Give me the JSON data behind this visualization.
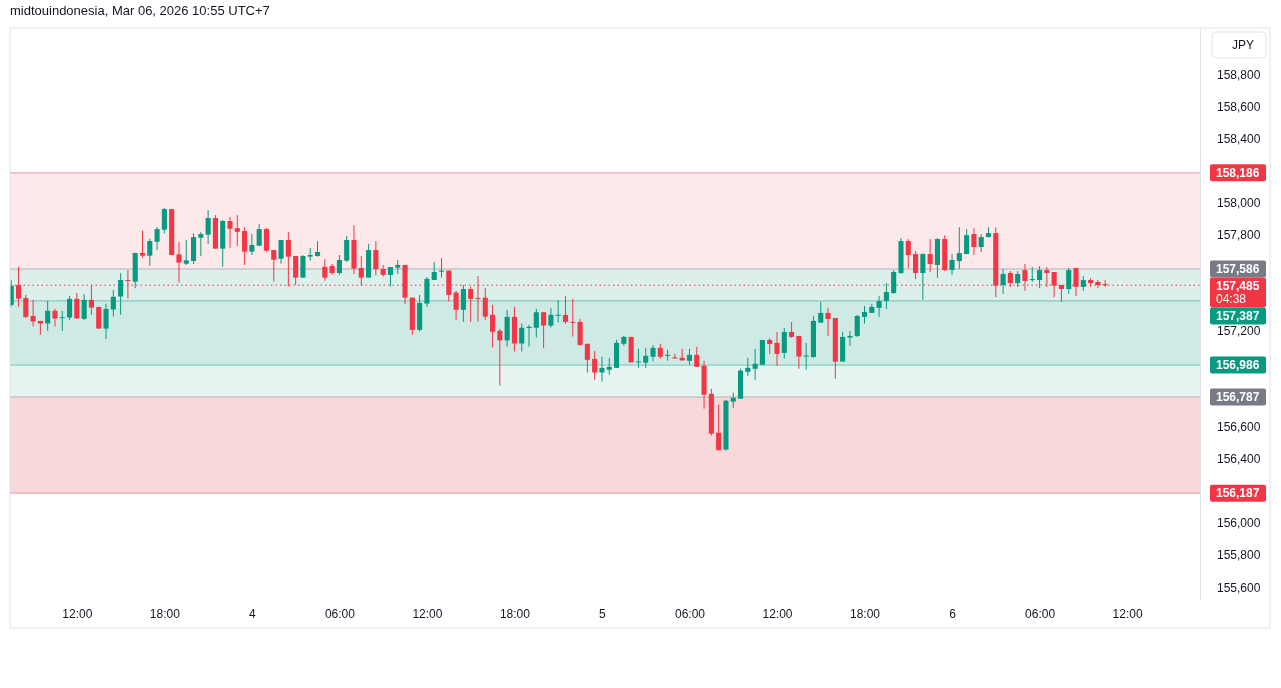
{
  "chart_data": {
    "type": "candlestick",
    "title": "midtouindonesia, Mar 06, 2026 10:55 UTC+7",
    "ylabel": "JPY",
    "annotations": [
      "04:38"
    ],
    "x": [
      "2026-03-03T07:30",
      "2026-03-03T08:00",
      "2026-03-03T08:30",
      "2026-03-03T09:00",
      "2026-03-03T09:30",
      "2026-03-03T10:00",
      "2026-03-03T10:30",
      "2026-03-03T11:00",
      "2026-03-03T11:30",
      "2026-03-03T12:00",
      "2026-03-03T12:30",
      "2026-03-03T13:00",
      "2026-03-03T13:30",
      "2026-03-03T14:00",
      "2026-03-03T14:30",
      "2026-03-03T15:00",
      "2026-03-03T15:30",
      "2026-03-03T16:00",
      "2026-03-03T16:30",
      "2026-03-03T17:00",
      "2026-03-03T17:30",
      "2026-03-03T18:00",
      "2026-03-03T18:30",
      "2026-03-03T19:00",
      "2026-03-03T19:30",
      "2026-03-03T20:00",
      "2026-03-03T20:30",
      "2026-03-03T21:00",
      "2026-03-03T21:30",
      "2026-03-03T22:00",
      "2026-03-03T22:30",
      "2026-03-03T23:00",
      "2026-03-03T23:30",
      "2026-03-04T00:00",
      "2026-03-04T00:30",
      "2026-03-04T01:00",
      "2026-03-04T01:30",
      "2026-03-04T02:00",
      "2026-03-04T02:30",
      "2026-03-04T03:00",
      "2026-03-04T03:30",
      "2026-03-04T04:00",
      "2026-03-04T04:30",
      "2026-03-04T05:00",
      "2026-03-04T05:30",
      "2026-03-04T06:00",
      "2026-03-04T06:30",
      "2026-03-04T07:00",
      "2026-03-04T07:30",
      "2026-03-04T08:00",
      "2026-03-04T08:30",
      "2026-03-04T09:00",
      "2026-03-04T09:30",
      "2026-03-04T10:00",
      "2026-03-04T10:30",
      "2026-03-04T11:00",
      "2026-03-04T11:30",
      "2026-03-04T12:00",
      "2026-03-04T12:30",
      "2026-03-04T13:00",
      "2026-03-04T13:30",
      "2026-03-04T14:00",
      "2026-03-04T14:30",
      "2026-03-04T15:00",
      "2026-03-04T15:30",
      "2026-03-04T16:00",
      "2026-03-04T16:30",
      "2026-03-04T17:00",
      "2026-03-04T17:30",
      "2026-03-04T18:00",
      "2026-03-04T18:30",
      "2026-03-04T19:00",
      "2026-03-04T19:30",
      "2026-03-04T20:00",
      "2026-03-04T20:30",
      "2026-03-04T21:00",
      "2026-03-04T21:30",
      "2026-03-04T22:00",
      "2026-03-04T22:30",
      "2026-03-04T23:00",
      "2026-03-04T23:30",
      "2026-03-05T00:00",
      "2026-03-05T00:30",
      "2026-03-05T01:00",
      "2026-03-05T01:30",
      "2026-03-05T02:00",
      "2026-03-05T02:30",
      "2026-03-05T03:00",
      "2026-03-05T03:30",
      "2026-03-05T04:00",
      "2026-03-05T04:30",
      "2026-03-05T05:00",
      "2026-03-05T05:30",
      "2026-03-05T06:00",
      "2026-03-05T06:30",
      "2026-03-05T07:00",
      "2026-03-05T07:30",
      "2026-03-05T08:00",
      "2026-03-05T08:30",
      "2026-03-05T09:00",
      "2026-03-05T09:30",
      "2026-03-05T10:00",
      "2026-03-05T10:30",
      "2026-03-05T11:00",
      "2026-03-05T11:30",
      "2026-03-05T12:00",
      "2026-03-05T12:30",
      "2026-03-05T13:00",
      "2026-03-05T13:30",
      "2026-03-05T14:00",
      "2026-03-05T14:30",
      "2026-03-05T15:00",
      "2026-03-05T15:30",
      "2026-03-05T16:00",
      "2026-03-05T16:30",
      "2026-03-05T17:00",
      "2026-03-05T17:30",
      "2026-03-05T18:00",
      "2026-03-05T18:30",
      "2026-03-05T19:00",
      "2026-03-05T19:30",
      "2026-03-05T20:00",
      "2026-03-05T20:30",
      "2026-03-05T21:00",
      "2026-03-05T21:30",
      "2026-03-05T22:00",
      "2026-03-05T22:30",
      "2026-03-05T23:00",
      "2026-03-05T23:30",
      "2026-03-06T00:00",
      "2026-03-06T00:30",
      "2026-03-06T01:00",
      "2026-03-06T01:30",
      "2026-03-06T02:00",
      "2026-03-06T02:30",
      "2026-03-06T03:00",
      "2026-03-06T03:30",
      "2026-03-06T04:00",
      "2026-03-06T04:30",
      "2026-03-06T05:00",
      "2026-03-06T05:30",
      "2026-03-06T06:00",
      "2026-03-06T06:30",
      "2026-03-06T07:00",
      "2026-03-06T07:30",
      "2026-03-06T08:00",
      "2026-03-06T08:30",
      "2026-03-06T09:00",
      "2026-03-06T09:30",
      "2026-03-06T10:00",
      "2026-03-06T10:30"
    ],
    "ohlc": [
      [
        157362,
        157517,
        157351,
        157482
      ],
      [
        157486,
        157601,
        157351,
        157401
      ],
      [
        157405,
        157424,
        157279,
        157287
      ],
      [
        157293,
        157393,
        157227,
        157258
      ],
      [
        157262,
        157262,
        157175,
        157246
      ],
      [
        157246,
        157387,
        157200,
        157325
      ],
      [
        157325,
        157337,
        157227,
        157277
      ],
      [
        157283,
        157325,
        157200,
        157285
      ],
      [
        157283,
        157418,
        157268,
        157399
      ],
      [
        157399,
        157437,
        157277,
        157277
      ],
      [
        157275,
        157430,
        157268,
        157393
      ],
      [
        157393,
        157486,
        157300,
        157345
      ],
      [
        157349,
        157349,
        157214,
        157214
      ],
      [
        157214,
        157368,
        157150,
        157337
      ],
      [
        157333,
        157455,
        157289,
        157412
      ],
      [
        157414,
        157559,
        157300,
        157517
      ],
      [
        157517,
        157580,
        157401,
        157511
      ],
      [
        157507,
        157686,
        157466,
        157686
      ],
      [
        157686,
        157825,
        157657,
        157669
      ],
      [
        157669,
        157775,
        157607,
        157760
      ],
      [
        157756,
        157848,
        157704,
        157835
      ],
      [
        157831,
        157966,
        157808,
        157960
      ],
      [
        157960,
        157960,
        157673,
        157673
      ],
      [
        157677,
        157754,
        157501,
        157626
      ],
      [
        157619,
        157767,
        157611,
        157640
      ],
      [
        157636,
        157808,
        157617,
        157785
      ],
      [
        157781,
        157816,
        157667,
        157804
      ],
      [
        157800,
        157954,
        157742,
        157904
      ],
      [
        157904,
        157922,
        157713,
        157713
      ],
      [
        157713,
        157891,
        157601,
        157885
      ],
      [
        157885,
        157910,
        157719,
        157837
      ],
      [
        157841,
        157922,
        157729,
        157818
      ],
      [
        157823,
        157848,
        157611,
        157694
      ],
      [
        157694,
        157804,
        157673,
        157736
      ],
      [
        157731,
        157866,
        157731,
        157835
      ],
      [
        157835,
        157841,
        157694,
        157700
      ],
      [
        157704,
        157704,
        157507,
        157644
      ],
      [
        157650,
        157767,
        157619,
        157767
      ],
      [
        157767,
        157816,
        157476,
        157663
      ],
      [
        157667,
        157667,
        157486,
        157532
      ],
      [
        157532,
        157673,
        157532,
        157667
      ],
      [
        157663,
        157717,
        157638,
        157673
      ],
      [
        157667,
        157760,
        157663,
        157692
      ],
      [
        157599,
        157648,
        157513,
        157532
      ],
      [
        157605,
        157617,
        157549,
        157561
      ],
      [
        157561,
        157673,
        157549,
        157642
      ],
      [
        157638,
        157792,
        157630,
        157767
      ],
      [
        157767,
        157860,
        157555,
        157588
      ],
      [
        157592,
        157667,
        157482,
        157532
      ],
      [
        157532,
        157742,
        157532,
        157704
      ],
      [
        157704,
        157760,
        157545,
        157584
      ],
      [
        157586,
        157611,
        157538,
        157549
      ],
      [
        157549,
        157598,
        157476,
        157598
      ],
      [
        157594,
        157642,
        157555,
        157611
      ],
      [
        157611,
        157611,
        157368,
        157407
      ],
      [
        157407,
        157407,
        157175,
        157206
      ],
      [
        157206,
        157424,
        157196,
        157374
      ],
      [
        157370,
        157536,
        157349,
        157524
      ],
      [
        157517,
        157630,
        157517,
        157567
      ],
      [
        157569,
        157654,
        157532,
        157576
      ],
      [
        157576,
        157576,
        157383,
        157424
      ],
      [
        157439,
        157451,
        157268,
        157331
      ],
      [
        157331,
        157486,
        157256,
        157461
      ],
      [
        157461,
        157476,
        157256,
        157399
      ],
      [
        157405,
        157542,
        157258,
        157401
      ],
      [
        157407,
        157468,
        157268,
        157289
      ],
      [
        157300,
        157362,
        157096,
        157194
      ],
      [
        157200,
        157212,
        156859,
        157140
      ],
      [
        157140,
        157331,
        157102,
        157287
      ],
      [
        157287,
        157349,
        157071,
        157121
      ],
      [
        157121,
        157246,
        157071,
        157219
      ],
      [
        157217,
        157237,
        157102,
        157225
      ],
      [
        157219,
        157337,
        157158,
        157316
      ],
      [
        157316,
        157316,
        157092,
        157233
      ],
      [
        157233,
        157341,
        157221,
        157300
      ],
      [
        157295,
        157391,
        157254,
        157300
      ],
      [
        157299,
        157418,
        157243,
        157256
      ],
      [
        157256,
        157399,
        157164,
        157252
      ],
      [
        157256,
        157274,
        157106,
        157112
      ],
      [
        157119,
        157119,
        156940,
        157019
      ],
      [
        157025,
        157075,
        156894,
        156940
      ],
      [
        156940,
        157038,
        156884,
        156969
      ],
      [
        156957,
        157032,
        156926,
        156975
      ],
      [
        156969,
        157144,
        156969,
        157125
      ],
      [
        157119,
        157169,
        157106,
        157162
      ],
      [
        157162,
        157162,
        157003,
        157003
      ],
      [
        157005,
        157088,
        156969,
        157009
      ],
      [
        157001,
        157094,
        156969,
        157044
      ],
      [
        157038,
        157112,
        157009,
        157094
      ],
      [
        157094,
        157119,
        157025,
        157038
      ],
      [
        157046,
        157082,
        157013,
        157050
      ],
      [
        157034,
        157057,
        157025,
        157028
      ],
      [
        157032,
        157088,
        157015,
        157015
      ],
      [
        157013,
        157088,
        156988,
        157050
      ],
      [
        157050,
        157100,
        156975,
        156975
      ],
      [
        156982,
        157013,
        156714,
        156801
      ],
      [
        156807,
        156838,
        156546,
        156558
      ],
      [
        156564,
        156739,
        156455,
        156455
      ],
      [
        156459,
        156770,
        156452,
        156764
      ],
      [
        156758,
        156814,
        156720,
        156782
      ],
      [
        156776,
        156963,
        156776,
        156951
      ],
      [
        156944,
        157032,
        156919,
        156969
      ],
      [
        156963,
        157087,
        156894,
        156994
      ],
      [
        156988,
        157143,
        156988,
        157143
      ],
      [
        157143,
        157154,
        157056,
        157118
      ],
      [
        157125,
        157193,
        156981,
        157056
      ],
      [
        157062,
        157218,
        157027,
        157193
      ],
      [
        157193,
        157255,
        157156,
        157162
      ],
      [
        157168,
        157168,
        156963,
        157040
      ],
      [
        157040,
        157125,
        156957,
        157046
      ],
      [
        157037,
        157293,
        157031,
        157262
      ],
      [
        157251,
        157380,
        157251,
        157312
      ],
      [
        157312,
        157343,
        157168,
        157274
      ],
      [
        157280,
        157280,
        156900,
        157008
      ],
      [
        157008,
        157193,
        157008,
        157162
      ],
      [
        157158,
        157199,
        157106,
        157168
      ],
      [
        157168,
        157299,
        157162,
        157293
      ],
      [
        157287,
        157355,
        157245,
        157318
      ],
      [
        157312,
        157368,
        157312,
        157349
      ],
      [
        157343,
        157417,
        157287,
        157386
      ],
      [
        157386,
        157498,
        157336,
        157442
      ],
      [
        157436,
        157579,
        157430,
        157567
      ],
      [
        157561,
        157779,
        157554,
        157760
      ],
      [
        157760,
        157772,
        157592,
        157673
      ],
      [
        157679,
        157698,
        157523,
        157561
      ],
      [
        157561,
        157685,
        157393,
        157679
      ],
      [
        157679,
        157772,
        157567,
        157617
      ],
      [
        157611,
        157779,
        157530,
        157773
      ],
      [
        157773,
        157797,
        157573,
        157579
      ],
      [
        157579,
        157679,
        157548,
        157642
      ],
      [
        157635,
        157847,
        157586,
        157685
      ],
      [
        157679,
        157835,
        157679,
        157797
      ],
      [
        157804,
        157841,
        157673,
        157723
      ],
      [
        157723,
        157804,
        157692,
        157785
      ],
      [
        157785,
        157847,
        157785,
        157810
      ],
      [
        157810,
        157847,
        157411,
        157482
      ],
      [
        157486,
        157586,
        157430,
        157555
      ],
      [
        157561,
        157573,
        157474,
        157498
      ],
      [
        157498,
        157573,
        157474,
        157555
      ],
      [
        157579,
        157617,
        157449,
        157511
      ],
      [
        157519,
        157598,
        157505,
        157523
      ],
      [
        157517,
        157604,
        157467,
        157579
      ],
      [
        157579,
        157598,
        157474,
        157561
      ],
      [
        157567,
        157567,
        157411,
        157482
      ],
      [
        157486,
        157486,
        157380,
        157461
      ],
      [
        157461,
        157592,
        157430,
        157579
      ],
      [
        157592,
        157592,
        157418,
        157474
      ],
      [
        157474,
        157542,
        157449,
        157517
      ],
      [
        157517,
        157530,
        157474,
        157498
      ],
      [
        157505,
        157517,
        157467,
        157486
      ],
      [
        157492,
        157517,
        157474,
        157485
      ]
    ],
    "colors": [
      "#089981",
      "#f23645",
      "#f23645",
      "#f23645",
      "#f23645",
      "#089981",
      "#f23645",
      "#089981",
      "#089981",
      "#f23645",
      "#089981",
      "#f23645",
      "#f23645",
      "#089981",
      "#089981",
      "#089981",
      "#f23645",
      "#089981",
      "#f23645",
      "#089981",
      "#089981",
      "#089981",
      "#f23645",
      "#f23645",
      "#089981",
      "#089981",
      "#089981",
      "#089981",
      "#f23645",
      "#089981",
      "#f23645",
      "#f23645",
      "#f23645",
      "#089981",
      "#089981",
      "#f23645",
      "#f23645",
      "#089981",
      "#f23645",
      "#f23645",
      "#089981",
      "#089981",
      "#089981",
      "#f23645",
      "#f23645",
      "#089981",
      "#089981",
      "#f23645",
      "#f23645",
      "#089981",
      "#f23645",
      "#f23645",
      "#089981",
      "#089981",
      "#f23645",
      "#f23645",
      "#089981",
      "#089981",
      "#089981",
      "#089981",
      "#f23645",
      "#f23645",
      "#089981",
      "#f23645",
      "#f23645",
      "#f23645",
      "#f23645",
      "#f23645",
      "#089981",
      "#f23645",
      "#089981",
      "#089981",
      "#089981",
      "#f23645",
      "#089981",
      "#089981",
      "#f23645",
      "#f23645",
      "#f23645",
      "#f23645",
      "#f23645",
      "#089981",
      "#089981",
      "#089981",
      "#089981",
      "#f23645",
      "#089981",
      "#089981",
      "#089981",
      "#f23645",
      "#089981",
      "#f23645",
      "#f23645",
      "#089981",
      "#f23645",
      "#f23645",
      "#f23645",
      "#f23645",
      "#089981",
      "#089981",
      "#089981",
      "#089981",
      "#089981",
      "#089981",
      "#f23645",
      "#f23645",
      "#089981",
      "#f23645",
      "#f23645",
      "#089981",
      "#089981",
      "#089981",
      "#f23645",
      "#f23645",
      "#089981",
      "#089981",
      "#089981",
      "#089981",
      "#089981",
      "#089981",
      "#089981",
      "#089981",
      "#089981",
      "#f23645",
      "#f23645",
      "#089981",
      "#f23645",
      "#089981",
      "#f23645",
      "#089981",
      "#089981",
      "#089981",
      "#f23645",
      "#089981",
      "#089981",
      "#f23645",
      "#089981",
      "#f23645",
      "#089981",
      "#f23645",
      "#089981",
      "#089981",
      "#f23645",
      "#f23645",
      "#f23645",
      "#089981",
      "#f23645",
      "#089981",
      "#f23645",
      "#f23645",
      "#f23645"
    ],
    "xlim": [
      "2026-03-03T07:25",
      "2026-03-06T17:00"
    ],
    "xticks": [
      {
        "value": "2026-03-03T12:00",
        "label": "12:00"
      },
      {
        "value": "2026-03-03T18:00",
        "label": "18:00"
      },
      {
        "value": "2026-03-04T00:00",
        "label": "4"
      },
      {
        "value": "2026-03-04T06:00",
        "label": "06:00"
      },
      {
        "value": "2026-03-04T12:00",
        "label": "12:00"
      },
      {
        "value": "2026-03-04T18:00",
        "label": "18:00"
      },
      {
        "value": "2026-03-05T00:00",
        "label": "5"
      },
      {
        "value": "2026-03-05T06:00",
        "label": "06:00"
      },
      {
        "value": "2026-03-05T12:00",
        "label": "12:00"
      },
      {
        "value": "2026-03-05T18:00",
        "label": "18:00"
      },
      {
        "value": "2026-03-06T00:00",
        "label": "6"
      },
      {
        "value": "2026-03-06T06:00",
        "label": "06:00"
      },
      {
        "value": "2026-03-06T12:00",
        "label": "12:00"
      }
    ],
    "ylim": [
      155520,
      159090
    ],
    "yticks": [
      {
        "value": 155600,
        "label": "155,600"
      },
      {
        "value": 155800,
        "label": "155,800"
      },
      {
        "value": 156000,
        "label": "156,000"
      },
      {
        "value": 156400,
        "label": "156,400"
      },
      {
        "value": 156600,
        "label": "156,600"
      },
      {
        "value": 157200,
        "label": "157,200"
      },
      {
        "value": 157800,
        "label": "157,800"
      },
      {
        "value": 158000,
        "label": "158,000"
      },
      {
        "value": 158400,
        "label": "158,400"
      },
      {
        "value": 158600,
        "label": "158,600"
      },
      {
        "value": 158800,
        "label": "158,800"
      }
    ],
    "bands": [
      {
        "axis": "y",
        "from": 157586,
        "to": 158186,
        "color": "#fde8ea"
      },
      {
        "axis": "y",
        "from": 157387,
        "to": 157586,
        "color": "#dcefeb"
      },
      {
        "axis": "y",
        "from": 156986,
        "to": 157387,
        "color": "#cfeae5"
      },
      {
        "axis": "y",
        "from": 156787,
        "to": 156986,
        "color": "#e5f4f1"
      },
      {
        "axis": "y",
        "from": 156187,
        "to": 156787,
        "color": "#f9d8dc"
      }
    ],
    "ref_lines": [
      {
        "axis": "y",
        "value": 158186,
        "label": "158,186",
        "color": "#f23645"
      },
      {
        "axis": "y",
        "value": 157586,
        "label": "157,586",
        "color": "#787b86"
      },
      {
        "axis": "y",
        "value": 157485,
        "label": "157,485",
        "color": "#f23645",
        "line_style": "dotted"
      },
      {
        "axis": "y",
        "value": 157387,
        "label": "157,387",
        "color": "#089981"
      },
      {
        "axis": "y",
        "value": 156986,
        "label": "156,986",
        "color": "#089981"
      },
      {
        "axis": "y",
        "value": 156787,
        "label": "156,787",
        "color": "#787b86"
      },
      {
        "axis": "y",
        "value": 156187,
        "label": "156,187",
        "color": "#f23645"
      }
    ],
    "grid": false
  }
}
